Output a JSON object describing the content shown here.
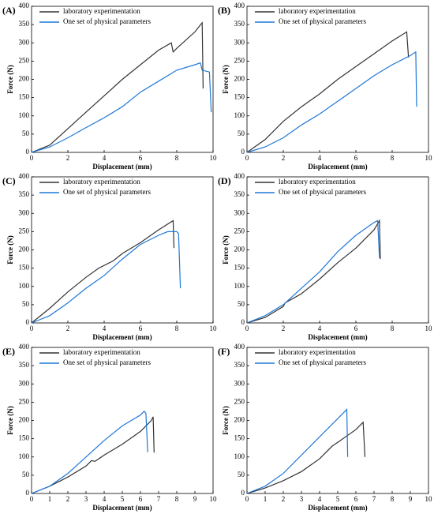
{
  "chart_data": [
    {
      "type": "line",
      "title": "(A)",
      "xlabel": "Displacement (mm)",
      "ylabel": "Force (N)",
      "xlim": [
        0,
        10
      ],
      "ylim": [
        0,
        400
      ],
      "xticks": [
        0,
        2,
        4,
        6,
        8,
        10
      ],
      "yticks": [
        0,
        50,
        100,
        150,
        200,
        250,
        300,
        350,
        400
      ],
      "series": [
        {
          "name": "laboratory experimentation",
          "color": "#333333",
          "x": [
            0,
            1,
            2,
            3,
            4,
            5,
            6,
            7,
            7.7,
            7.8,
            8,
            9,
            9.4,
            9.45
          ],
          "values": [
            0,
            20,
            65,
            110,
            155,
            200,
            240,
            280,
            300,
            275,
            285,
            330,
            355,
            175
          ]
        },
        {
          "name": "One set of physical parameters",
          "color": "#1f78d8",
          "x": [
            0,
            1,
            2,
            3,
            4,
            5,
            6,
            7,
            8,
            9,
            9.3,
            9.4,
            9.8,
            9.9
          ],
          "values": [
            0,
            15,
            40,
            68,
            95,
            125,
            165,
            195,
            225,
            240,
            245,
            225,
            220,
            110
          ]
        }
      ]
    },
    {
      "type": "line",
      "title": "(B)",
      "xlabel": "Displacement (mm)",
      "ylabel": "Force (N)",
      "xlim": [
        0,
        10
      ],
      "ylim": [
        0,
        400
      ],
      "xticks": [
        0,
        2,
        4,
        6,
        8,
        10
      ],
      "yticks": [
        0,
        50,
        100,
        150,
        200,
        250,
        300,
        350,
        400
      ],
      "series": [
        {
          "name": "laboratory experimentation",
          "color": "#333333",
          "x": [
            0,
            1,
            2,
            3,
            4,
            5,
            6,
            7,
            8,
            8.8,
            8.9
          ],
          "values": [
            0,
            35,
            85,
            125,
            160,
            200,
            235,
            270,
            305,
            330,
            260
          ]
        },
        {
          "name": "One set of physical parameters",
          "color": "#1f78d8",
          "x": [
            0,
            1,
            2,
            3,
            4,
            5,
            6,
            7,
            8,
            9,
            9.3,
            9.35
          ],
          "values": [
            0,
            15,
            40,
            75,
            105,
            140,
            175,
            210,
            240,
            265,
            275,
            125
          ]
        }
      ]
    },
    {
      "type": "line",
      "title": "(C)",
      "xlabel": "Displacement (mm)",
      "ylabel": "Force (N)",
      "xlim": [
        0,
        10
      ],
      "ylim": [
        0,
        400
      ],
      "xticks": [
        0,
        2,
        4,
        6,
        8,
        10
      ],
      "yticks": [
        0,
        50,
        100,
        150,
        200,
        250,
        300,
        350,
        400
      ],
      "series": [
        {
          "name": "laboratory experimentation",
          "color": "#333333",
          "x": [
            0,
            1,
            2,
            3,
            3.7,
            4.5,
            5,
            6,
            7,
            7.8,
            7.85
          ],
          "values": [
            0,
            40,
            85,
            125,
            150,
            170,
            190,
            220,
            255,
            280,
            205
          ]
        },
        {
          "name": "One set of physical parameters",
          "color": "#1f78d8",
          "x": [
            0,
            1,
            2,
            3,
            4,
            5,
            6,
            7,
            7.5,
            8,
            8.1,
            8.2
          ],
          "values": [
            0,
            20,
            55,
            95,
            130,
            175,
            215,
            240,
            250,
            250,
            245,
            95
          ]
        }
      ]
    },
    {
      "type": "line",
      "title": "(D)",
      "xlabel": "Displacement (mm)",
      "ylabel": "Force (N)",
      "xlim": [
        0,
        10
      ],
      "ylim": [
        0,
        400
      ],
      "xticks": [
        0,
        2,
        4,
        6,
        8,
        10
      ],
      "yticks": [
        0,
        50,
        100,
        150,
        200,
        250,
        300,
        350,
        400
      ],
      "series": [
        {
          "name": "laboratory experimentation",
          "color": "#333333",
          "x": [
            0,
            1,
            2,
            2.1,
            3,
            4,
            5,
            6,
            7,
            7.3,
            7.35
          ],
          "values": [
            0,
            15,
            45,
            55,
            80,
            120,
            165,
            205,
            255,
            280,
            175
          ]
        },
        {
          "name": "One set of physical parameters",
          "color": "#1f78d8",
          "x": [
            0,
            1,
            2,
            3,
            4,
            5,
            6,
            7,
            7.2,
            7.3
          ],
          "values": [
            0,
            20,
            50,
            95,
            140,
            195,
            240,
            275,
            280,
            178
          ]
        }
      ]
    },
    {
      "type": "line",
      "title": "(E)",
      "xlabel": "Displacement (mm)",
      "ylabel": "Force (N)",
      "xlim": [
        0,
        10
      ],
      "ylim": [
        0,
        400
      ],
      "xticks": [
        0,
        1,
        2,
        3,
        4,
        5,
        6,
        7,
        8,
        9,
        10
      ],
      "yticks": [
        0,
        50,
        100,
        150,
        200,
        250,
        300,
        350,
        400
      ],
      "series": [
        {
          "name": "laboratory experimentation",
          "color": "#333333",
          "x": [
            0,
            1,
            2,
            3,
            3.3,
            3.5,
            4,
            5,
            6,
            6.6,
            6.7,
            6.75
          ],
          "values": [
            0,
            20,
            45,
            75,
            90,
            88,
            105,
            135,
            170,
            200,
            210,
            112
          ]
        },
        {
          "name": "One set of physical parameters",
          "color": "#1f78d8",
          "x": [
            0,
            1,
            2,
            3,
            4,
            5,
            6,
            6.2,
            6.3,
            6.4
          ],
          "values": [
            0,
            20,
            55,
            100,
            145,
            185,
            215,
            225,
            220,
            113
          ]
        }
      ]
    },
    {
      "type": "line",
      "title": "(F)",
      "xlabel": "Displacement (mm)",
      "ylabel": "Force (N)",
      "xlim": [
        0,
        10
      ],
      "ylim": [
        0,
        400
      ],
      "xticks": [
        0,
        1,
        2,
        3,
        4,
        5,
        6,
        7,
        8,
        9,
        10
      ],
      "yticks": [
        0,
        50,
        100,
        150,
        200,
        250,
        300,
        350,
        400
      ],
      "series": [
        {
          "name": "laboratory experimentation",
          "color": "#333333",
          "x": [
            0,
            1,
            2,
            3,
            4,
            4.7,
            5,
            6,
            6.4,
            6.5
          ],
          "values": [
            0,
            15,
            35,
            60,
            95,
            130,
            140,
            175,
            195,
            100
          ]
        },
        {
          "name": "One set of physical parameters",
          "color": "#1f78d8",
          "x": [
            0,
            1,
            2,
            3,
            4,
            5,
            5.4,
            5.5,
            5.55
          ],
          "values": [
            0,
            20,
            55,
            105,
            155,
            205,
            225,
            230,
            100
          ]
        }
      ]
    }
  ]
}
